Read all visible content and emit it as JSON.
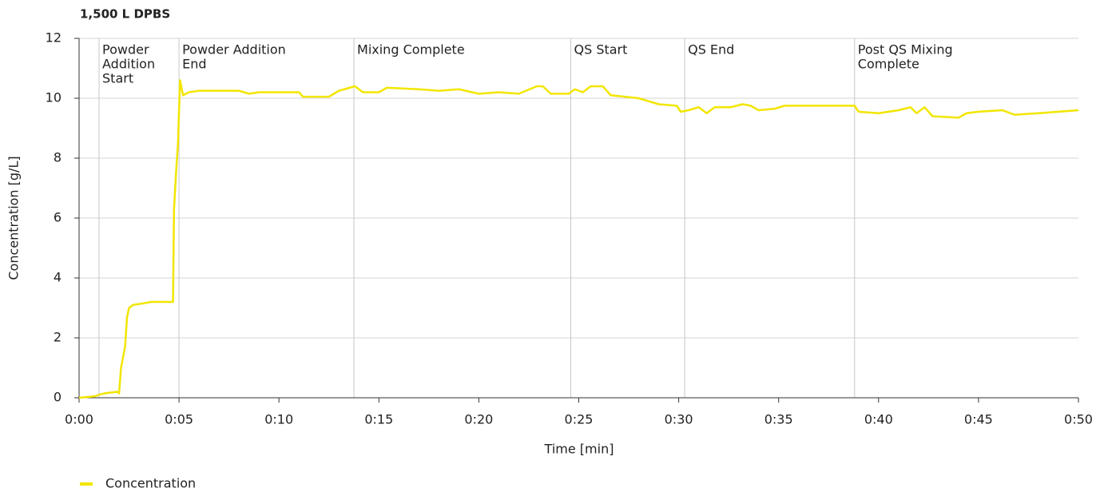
{
  "chart_data": {
    "type": "line",
    "title": "1,500 L DPBS",
    "xlabel": "Time [min]",
    "ylabel": "Concentration [g/L]",
    "xlim": [
      0,
      50
    ],
    "ylim": [
      0,
      12
    ],
    "xticks": [
      {
        "value": 0,
        "label": "0:00"
      },
      {
        "value": 5,
        "label": "0:05"
      },
      {
        "value": 10,
        "label": "0:10"
      },
      {
        "value": 15,
        "label": "0:15"
      },
      {
        "value": 20,
        "label": "0:20"
      },
      {
        "value": 25,
        "label": "0:25"
      },
      {
        "value": 30,
        "label": "0:30"
      },
      {
        "value": 35,
        "label": "0:35"
      },
      {
        "value": 40,
        "label": "0:40"
      },
      {
        "value": 45,
        "label": "0:45"
      },
      {
        "value": 50,
        "label": "0:50"
      }
    ],
    "yticks": [
      0,
      2,
      4,
      6,
      8,
      10,
      12
    ],
    "grid": true,
    "legend": "bottom-left",
    "annotations": [
      {
        "x": 1.0,
        "lines": [
          "Powder",
          "Addition",
          "Start"
        ]
      },
      {
        "x": 5.0,
        "lines": [
          "Powder Addition",
          "End"
        ]
      },
      {
        "x": 13.75,
        "lines": [
          "Mixing Complete"
        ]
      },
      {
        "x": 24.6,
        "lines": [
          "QS Start"
        ]
      },
      {
        "x": 30.3,
        "lines": [
          "QS End"
        ]
      },
      {
        "x": 38.8,
        "lines": [
          "Post QS Mixing",
          "Complete"
        ]
      }
    ],
    "series": [
      {
        "name": "Concentration",
        "color": "#f2e600",
        "x": [
          0,
          0.8,
          1.0,
          1.3,
          1.9,
          2.0,
          2.1,
          2.3,
          2.4,
          2.5,
          2.7,
          3.2,
          3.6,
          4.7,
          4.75,
          4.85,
          4.95,
          5.05,
          5.2,
          5.5,
          6,
          8,
          8.5,
          9,
          11,
          11.2,
          12.5,
          13,
          13.8,
          14.2,
          15,
          15.4,
          17,
          18,
          19,
          20,
          21,
          22,
          22.9,
          23.2,
          23.6,
          24.5,
          24.8,
          25.2,
          25.6,
          26.2,
          26.6,
          28,
          29,
          29.9,
          30.1,
          30.5,
          31,
          31.4,
          31.8,
          32.6,
          33.2,
          33.6,
          34,
          34.8,
          35.3,
          38.8,
          39,
          40,
          41,
          41.6,
          41.9,
          42.3,
          42.7,
          44,
          44.4,
          45,
          46.2,
          46.8,
          48,
          49,
          50
        ],
        "values": [
          0,
          0.05,
          0.1,
          0.15,
          0.2,
          0.15,
          1.0,
          1.7,
          2.7,
          3.0,
          3.1,
          3.15,
          3.2,
          3.2,
          6.3,
          7.5,
          8.5,
          10.6,
          10.1,
          10.2,
          10.25,
          10.25,
          10.15,
          10.2,
          10.2,
          10.05,
          10.05,
          10.25,
          10.4,
          10.2,
          10.2,
          10.35,
          10.3,
          10.25,
          10.3,
          10.15,
          10.2,
          10.15,
          10.4,
          10.4,
          10.15,
          10.15,
          10.3,
          10.2,
          10.4,
          10.4,
          10.1,
          10.0,
          9.8,
          9.75,
          9.55,
          9.6,
          9.7,
          9.5,
          9.7,
          9.7,
          9.8,
          9.75,
          9.6,
          9.65,
          9.75,
          9.75,
          9.55,
          9.5,
          9.6,
          9.7,
          9.5,
          9.7,
          9.4,
          9.35,
          9.5,
          9.55,
          9.6,
          9.45,
          9.5,
          9.55,
          9.6
        ]
      }
    ]
  }
}
